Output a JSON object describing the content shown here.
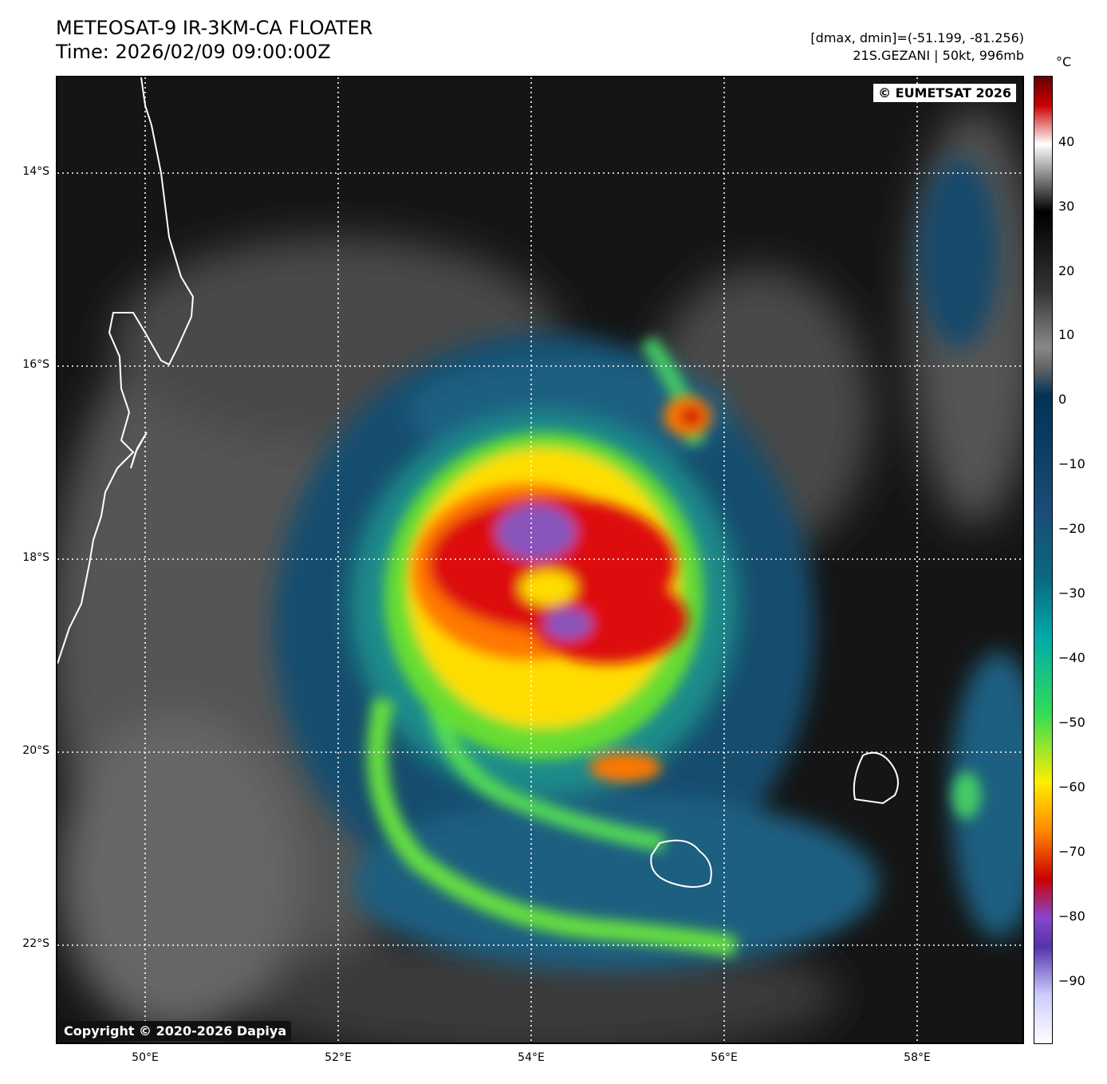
{
  "title": {
    "line1": "METEOSAT-9 IR-3KM-CA FLOATER",
    "line2": "Time: 2026/02/09 09:00:00Z"
  },
  "info": {
    "line1": "[dmax, dmin]=(-51.199, -81.256)",
    "line2": "21S.GEZANI | 50kt, 996mb"
  },
  "badges": {
    "eumetsat": "© EUMETSAT 2026",
    "copyright": "Copyright © 2020-2026 Dapiya"
  },
  "map": {
    "lat_labels": [
      "14°S",
      "16°S",
      "18°S",
      "20°S",
      "22°S"
    ],
    "lon_labels": [
      "50°E",
      "52°E",
      "54°E",
      "56°E",
      "58°E"
    ],
    "lat_range": [
      -23,
      -13
    ],
    "lon_range": [
      49.1,
      59.1
    ]
  },
  "colorbar": {
    "unit": "°C",
    "labels": [
      "40",
      "30",
      "20",
      "10",
      "0",
      "−10",
      "−20",
      "−30",
      "−40",
      "−50",
      "−60",
      "−70",
      "−80",
      "−90"
    ],
    "colors": [
      "#660000",
      "#ffffff",
      "#000000",
      "#888888",
      "#003355",
      "#1f6fa0",
      "#00aaaa",
      "#33dd55",
      "#ffee00",
      "#ff8800",
      "#cc0000",
      "#8844cc",
      "#ffffff"
    ]
  }
}
